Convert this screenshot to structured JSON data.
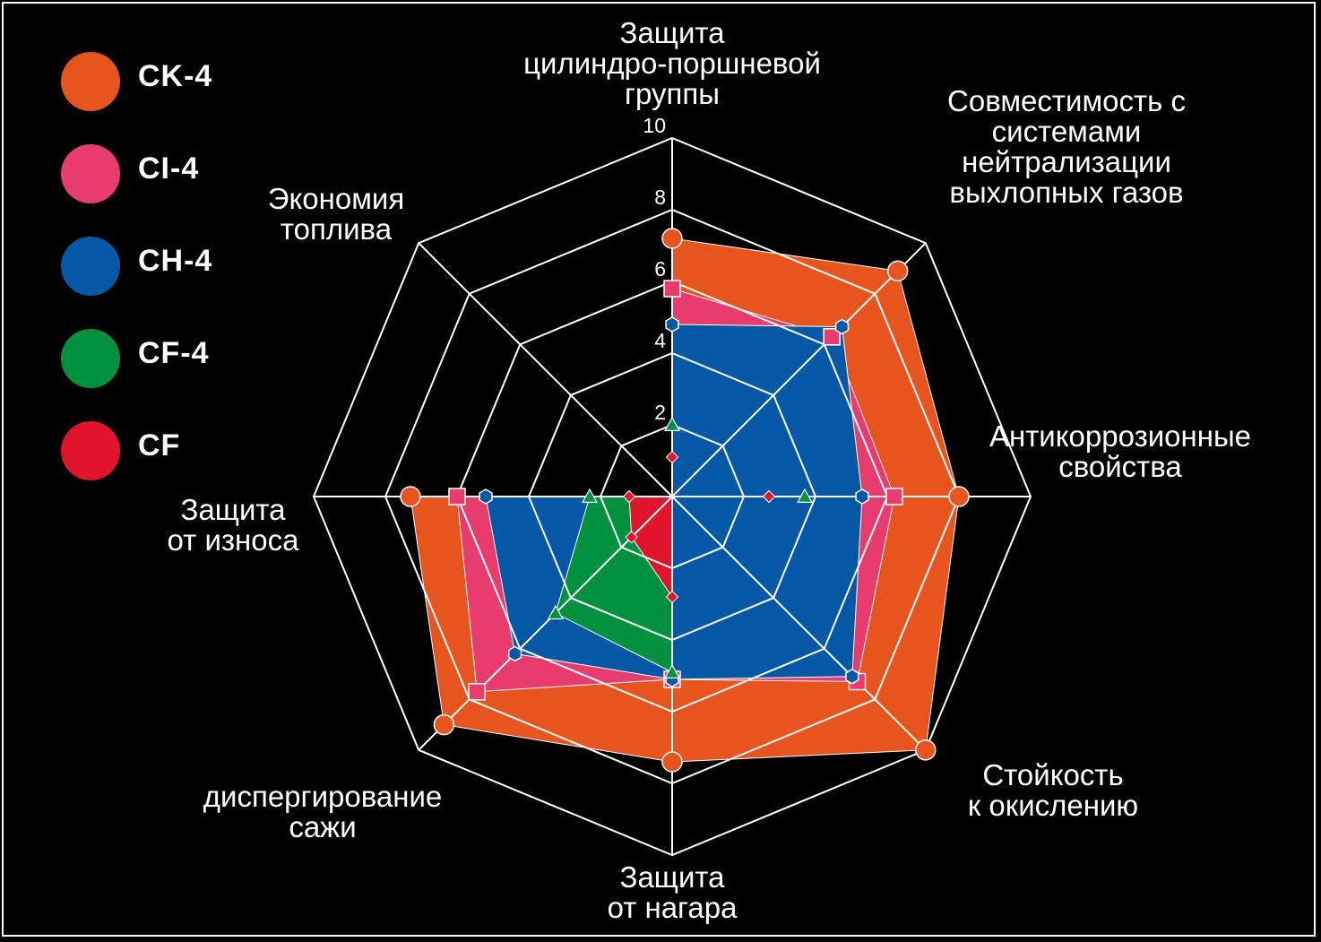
{
  "chart_data": {
    "type": "radar",
    "title": "",
    "axes": [
      "Защита\nцилиндро-поршневой\nгруппы",
      "Совместимость с\nсистемами\nнейтрализации\nвыхлопных газов",
      "Антикоррозионные\nсвойства",
      "Стойкость\nк окислению",
      "Защита\nот нагара",
      "диспергирование\nсажи",
      "Защита\nот износа",
      "Экономия\nтоплива"
    ],
    "range": [
      0,
      10
    ],
    "ticks": [
      "2",
      "4",
      "6",
      "8",
      "10"
    ],
    "tick_values": [
      2,
      4,
      6,
      8,
      10
    ],
    "series": [
      {
        "name": "CK-4",
        "color": "#e8541e",
        "marker": "circle",
        "values": [
          7.2,
          8.9,
          8.0,
          10.0,
          7.4,
          9.0,
          7.3,
          0
        ]
      },
      {
        "name": "CI-4",
        "color": "#e83c6e",
        "marker": "square",
        "values": [
          5.8,
          6.3,
          6.2,
          7.3,
          5.1,
          7.7,
          6.0,
          0
        ]
      },
      {
        "name": "CH-4",
        "color": "#0458a5",
        "marker": "hexagon",
        "values": [
          4.8,
          6.7,
          5.3,
          7.1,
          5.1,
          6.2,
          5.2,
          0
        ]
      },
      {
        "name": "CF-4",
        "color": "#00913f",
        "marker": "triangle",
        "values": [
          2.0,
          0,
          3.7,
          0,
          4.9,
          4.6,
          2.3,
          0
        ]
      },
      {
        "name": "CF",
        "color": "#e0142a",
        "marker": "diamond",
        "values": [
          1.1,
          0,
          2.7,
          0,
          2.8,
          1.6,
          1.2,
          0
        ]
      }
    ],
    "grid": true,
    "legend": "top-left"
  },
  "legend": [
    {
      "label": "CK-4",
      "color": "#e8541e"
    },
    {
      "label": "CI-4",
      "color": "#e83c6e"
    },
    {
      "label": "CH-4",
      "color": "#0458a5"
    },
    {
      "label": "CF-4",
      "color": "#00913f"
    },
    {
      "label": "CF",
      "color": "#e0142a"
    }
  ]
}
